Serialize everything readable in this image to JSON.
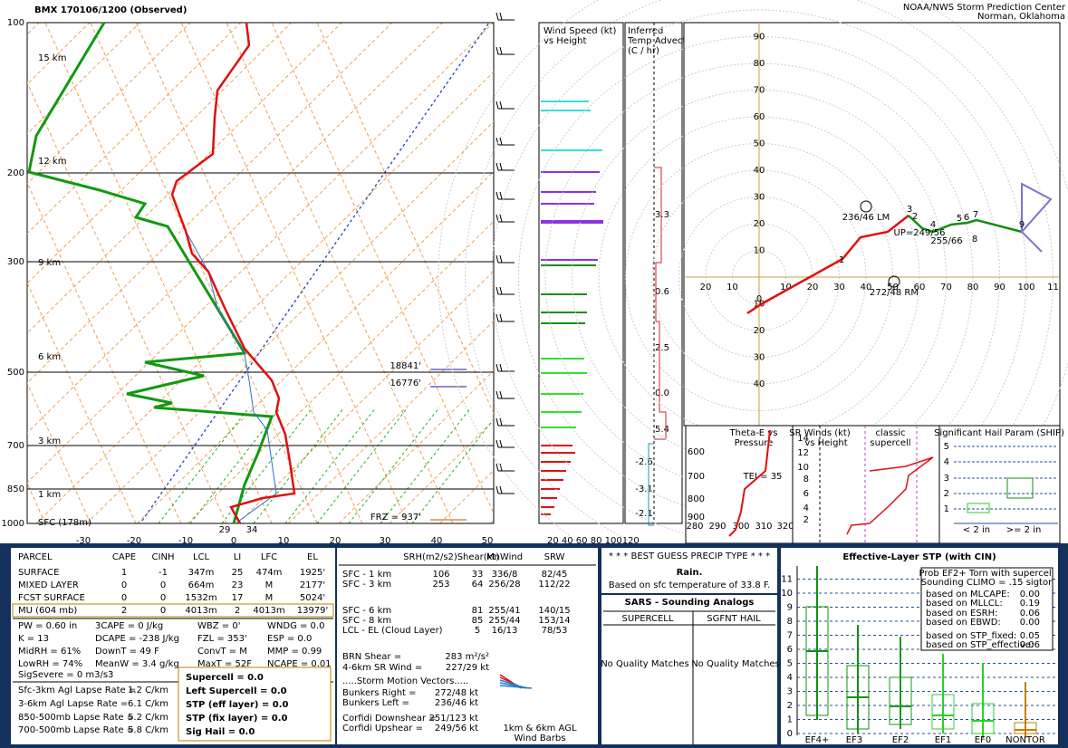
{
  "header": {
    "title": "BMX   170106/1200  (Observed)",
    "credit": [
      "NOAA/NWS Storm Prediction Center",
      "Norman, Oklahoma"
    ]
  },
  "skewt": {
    "pressure_labels": [
      "100",
      "200",
      "300",
      "500",
      "700",
      "850",
      "1000"
    ],
    "temp_labels": [
      "-30",
      "-20",
      "-10",
      "0",
      "10",
      "20",
      "30",
      "40",
      "50"
    ],
    "height_labels": [
      "15 km",
      "12 km",
      "9 km",
      "6 km",
      "3 km",
      "1 km",
      "SFC (178m)"
    ],
    "heights": [
      "18841'",
      "16776'"
    ],
    "frz": "FRZ = 937'",
    "sfc_td": "29",
    "sfc_t": "34"
  },
  "wind_panel": {
    "title": [
      "Wind Speed (kt)",
      "vs Height"
    ],
    "ticks": "20 40 60 80 100120"
  },
  "advection": {
    "title": [
      "Inferred",
      "Temp Advection",
      "(C / hr)"
    ],
    "values": [
      "3.3",
      "0.6",
      "2.5",
      "0.0",
      "5.4",
      "-2.6",
      "-3.1",
      "-2.1"
    ]
  },
  "hodograph": {
    "y_labels": [
      "10",
      "20",
      "30",
      "40",
      "50",
      "60",
      "70",
      "80",
      "90"
    ],
    "x_labels": [
      "10",
      "20",
      "30",
      "40",
      "50",
      "60",
      "70",
      "80",
      "90",
      "100",
      "11"
    ],
    "x_left": [
      "10",
      "20"
    ],
    "y_down": [
      "10",
      "20",
      "30",
      "40"
    ],
    "lm": "236/46 LM",
    "rm": "272/48 RM",
    "up": "UP=249/56",
    "mean": "255/66",
    "points": [
      "0",
      "1",
      "2",
      "3",
      "4",
      "5",
      "6",
      "7",
      "8",
      "9"
    ]
  },
  "theta": {
    "title": [
      "Theta-E vs",
      "Pressure"
    ],
    "yticks": [
      "600",
      "700",
      "800",
      "900"
    ],
    "xticks": [
      "280",
      "290",
      "300",
      "310",
      "320"
    ],
    "tei": "TEI = 35"
  },
  "srwind": {
    "title": [
      "SR Winds (kt)",
      "vs Height"
    ],
    "note": [
      "classic",
      "supercell"
    ],
    "yticks": [
      "2",
      "4",
      "6",
      "8",
      "10",
      "12",
      "14"
    ]
  },
  "ship": {
    "title": "Significant Hail Param (SHIP)",
    "yticks": [
      "1",
      "2",
      "3",
      "4",
      "5"
    ],
    "xlabels": [
      "< 2 in",
      ">= 2 in"
    ]
  },
  "parcel": {
    "headers": [
      "PARCEL",
      "CAPE",
      "CINH",
      "LCL",
      "LI",
      "LFC",
      "EL"
    ],
    "rows": [
      [
        "SURFACE",
        "1",
        "-1",
        "347m",
        "25",
        "474m",
        "1925'"
      ],
      [
        "MIXED LAYER",
        "0",
        "0",
        "664m",
        "23",
        "M",
        "2177'"
      ],
      [
        "FCST SURFACE",
        "0",
        "0",
        "1532m",
        "17",
        "M",
        "5024'"
      ],
      [
        "MU  (604 mb)",
        "2",
        "0",
        "4013m",
        "2",
        "4013m",
        "13979'"
      ]
    ],
    "indices": [
      [
        "PW = 0.60 in",
        "3CAPE = 0 J/kg",
        "WBZ = 0'",
        "WNDG = 0.0"
      ],
      [
        "K = 13",
        "DCAPE = -238 J/kg",
        "FZL = 353'",
        "ESP = 0.0"
      ],
      [
        "MidRH = 61%",
        "DownT = 49 F",
        "ConvT = M",
        "MMP = 0.99"
      ],
      [
        "LowRH = 74%",
        "MeanW = 3.4 g/kg",
        "MaxT = 52F",
        "NCAPE = 0.01"
      ]
    ],
    "sigsevere": "SigSevere = 0 m3/s3",
    "lapse": [
      [
        "Sfc-3km Agl Lapse Rate =",
        "1.2 C/km"
      ],
      [
        "3-6km Agl Lapse Rate =",
        "6.1 C/km"
      ],
      [
        "850-500mb Lapse Rate =",
        "5.2 C/km"
      ],
      [
        "700-500mb Lapse Rate =",
        "5.8 C/km"
      ]
    ],
    "composite": [
      "Supercell = 0.0",
      "Left Supercell = 0.0",
      "STP (eff layer) = 0.0",
      "STP (fix layer) = 0.0",
      "Sig Hail = 0.0"
    ]
  },
  "shear": {
    "headers": [
      "SRH(m2/s2)",
      "Shear(kt)",
      "MnWind",
      "SRW"
    ],
    "rows": [
      [
        "SFC - 1 km",
        "106",
        "33",
        "336/8",
        "82/45"
      ],
      [
        "SFC - 3 km",
        "253",
        "64",
        "256/28",
        "112/22"
      ],
      [
        "SFC - 6 km",
        "",
        "81",
        "255/41",
        "140/15"
      ],
      [
        "SFC - 8 km",
        "",
        "85",
        "255/44",
        "153/14"
      ],
      [
        "LCL - EL (Cloud Layer)",
        "",
        "5",
        "16/13",
        "78/53"
      ]
    ],
    "lines": [
      [
        "BRN Shear =",
        "283 m²/s²"
      ],
      [
        "4-6km SR Wind =",
        "227/29 kt"
      ]
    ],
    "motion_title": ".....Storm Motion Vectors.....",
    "motion": [
      [
        "Bunkers Right =",
        "272/48 kt"
      ],
      [
        "Bunkers Left =",
        "236/46 kt"
      ],
      [
        "Corfidi Downshear =",
        "251/123 kt"
      ],
      [
        "Corfidi Upshear =",
        "249/56 kt"
      ]
    ],
    "barbs": [
      "1km & 6km AGL",
      "Wind Barbs"
    ]
  },
  "precip": {
    "title": "* * * BEST GUESS PRECIP TYPE * * *",
    "type": "Rain.",
    "note": "Based on sfc temperature of 33.8 F."
  },
  "sars": {
    "title": "SARS - Sounding Analogs",
    "cols": [
      "SUPERCELL",
      "SGFNT HAIL"
    ],
    "matches": [
      "No Quality Matches",
      "No Quality Matches"
    ]
  },
  "stp": {
    "title": "Effective-Layer STP (with CIN)",
    "box": [
      "Prob EF2+ Torn with supercell",
      "Sounding CLIMO = .15 sigtor"
    ],
    "based": [
      [
        "based on MLCAPE:",
        "0.00"
      ],
      [
        "based on MLLCL:",
        "0.19"
      ],
      [
        "based on ESRH:",
        "0.06"
      ],
      [
        "based on EBWD:",
        "0.00"
      ],
      [
        "based on STP_fixed:",
        "0.05"
      ],
      [
        "based on STP_effective:",
        "0.06"
      ]
    ],
    "yticks": [
      "0",
      "1",
      "2",
      "3",
      "4",
      "5",
      "6",
      "7",
      "8",
      "9",
      "10",
      "11"
    ],
    "xlabels": [
      "EF4+",
      "EF3",
      "EF2",
      "EF1",
      "EF0",
      "NONTOR"
    ]
  }
}
